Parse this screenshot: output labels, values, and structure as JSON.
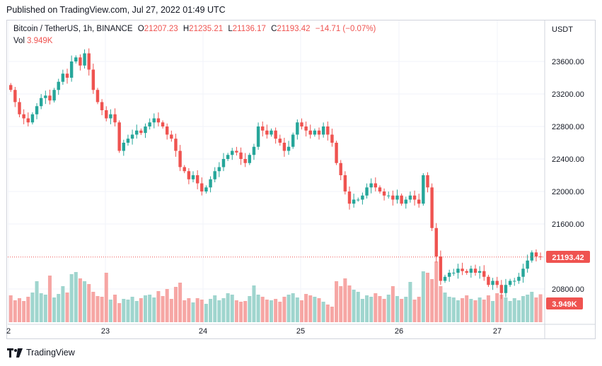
{
  "header": {
    "published": "Published on TradingView.com, Jul 27, 2022 01:49 UTC"
  },
  "legend": {
    "symbol": "Bitcoin / TetherUS, 1h, BINANCE",
    "o_label": "O",
    "o_value": "21207.23",
    "h_label": "H",
    "h_value": "21235.21",
    "l_label": "L",
    "l_value": "21136.17",
    "c_label": "C",
    "c_value": "21193.42",
    "change": "−14.71 (−0.07%)",
    "vol_label": "Vol",
    "vol_value": "3.949K"
  },
  "footer": {
    "brand": "TradingView"
  },
  "colors": {
    "up": "#26a69a",
    "down": "#ef5350",
    "up_vol": "#9fd5ce",
    "down_vol": "#f6a6a4",
    "grid": "#f0f3fa"
  },
  "icons": {
    "brand_logo": "tradingview-logo-icon"
  },
  "chart_data": {
    "type": "candlestick",
    "currency": "USDT",
    "y_ticks": [
      "23600.00",
      "23200.00",
      "22800.00",
      "22400.00",
      "22000.00",
      "21600.00",
      "20800.00"
    ],
    "ylim": [
      20650,
      23900
    ],
    "x_ticks": [
      "2",
      "23",
      "24",
      "25",
      "26",
      "27"
    ],
    "last_price": "21193.42",
    "last_volume": "3.949K",
    "series": [
      {
        "name": "price",
        "closes": [
          23250,
          23100,
          22950,
          22900,
          22850,
          22950,
          23050,
          23150,
          23180,
          23120,
          23250,
          23350,
          23450,
          23400,
          23600,
          23650,
          23550,
          23700,
          23500,
          23250,
          23100,
          23000,
          22900,
          22950,
          22850,
          22500,
          22600,
          22650,
          22700,
          22750,
          22720,
          22800,
          22850,
          22900,
          22850,
          22800,
          22700,
          22650,
          22500,
          22300,
          22250,
          22150,
          22200,
          22100,
          22000,
          22050,
          22150,
          22250,
          22300,
          22400,
          22450,
          22500,
          22480,
          22400,
          22350,
          22450,
          22550,
          22800,
          22750,
          22700,
          22750,
          22650,
          22600,
          22500,
          22550,
          22700,
          22850,
          22800,
          22750,
          22700,
          22750,
          22700,
          22800,
          22700,
          22600,
          22350,
          22200,
          22000,
          21850,
          21900,
          21900,
          21950,
          22050,
          22100,
          22050,
          22000,
          21950,
          21950,
          21900,
          21950,
          21850,
          21900,
          21950,
          21900,
          21850,
          22200,
          22050,
          21550,
          21200,
          20900,
          20950,
          21000,
          21000,
          21050,
          21020,
          21000,
          21050,
          21000,
          21020,
          20950,
          20850,
          20900,
          20850,
          20750,
          20850,
          20900,
          20900,
          20950,
          21050,
          21150,
          21250,
          21200,
          21193
        ]
      },
      {
        "name": "volume",
        "values": [
          3.8,
          3.1,
          3.4,
          3.0,
          3.6,
          4.2,
          5.8,
          4.1,
          3.9,
          6.6,
          3.5,
          4.0,
          5.1,
          4.2,
          6.8,
          7.1,
          6.2,
          5.8,
          5.4,
          4.3,
          3.7,
          3.6,
          7.0,
          3.2,
          3.9,
          2.7,
          3.3,
          3.2,
          3.6,
          3.0,
          3.4,
          3.8,
          3.9,
          3.5,
          4.4,
          3.7,
          4.7,
          3.3,
          5.0,
          5.6,
          3.1,
          3.4,
          2.8,
          3.4,
          3.2,
          2.6,
          3.3,
          3.8,
          3.1,
          3.4,
          4.1,
          3.9,
          3.1,
          2.9,
          3.0,
          3.7,
          5.2,
          3.9,
          3.6,
          3.2,
          3.1,
          3.3,
          2.9,
          3.6,
          3.9,
          4.1,
          3.5,
          3.1,
          4.0,
          3.8,
          3.6,
          3.4,
          2.9,
          2.5,
          2.2,
          5.8,
          5.1,
          6.2,
          5.2,
          4.6,
          4.3,
          3.3,
          3.8,
          3.6,
          4.1,
          3.7,
          3.3,
          3.9,
          5.1,
          3.7,
          3.3,
          3.6,
          5.7,
          3.2,
          3.6,
          7.2,
          7.0,
          6.1,
          8.6,
          5.1,
          4.2,
          3.6,
          3.5,
          3.1,
          3.4,
          3.8,
          3.3,
          3.1,
          3.5,
          3.2,
          3.8,
          3.0,
          4.1,
          3.9,
          3.5,
          3.0,
          3.4,
          3.1,
          3.7,
          3.9,
          4.3,
          3.5,
          3.949
        ]
      }
    ]
  }
}
